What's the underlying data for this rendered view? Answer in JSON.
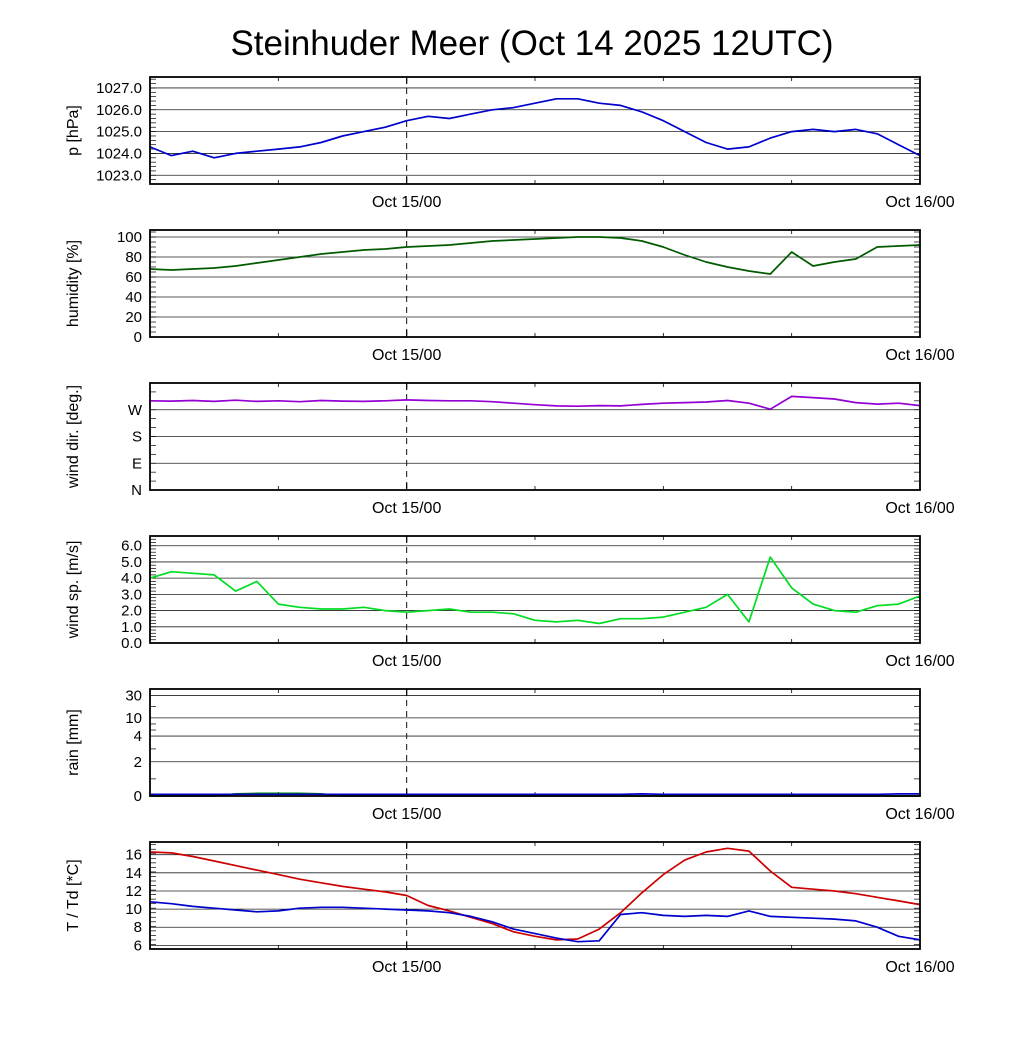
{
  "title": "Steinhuder Meer (Oct 14 2025 12UTC)",
  "x_axis_note": "time axis spans 36 hours from left edge to right edge; dashed vertical rule at first major tick",
  "chart_data": [
    {
      "type": "line",
      "ylabel": "p [hPa]",
      "ymin": 1022.6,
      "ymax": 1027.5,
      "minor_step": 0.2,
      "grid": true,
      "legend": "none",
      "yticks": [
        {
          "v": 1023,
          "label": "1023.0"
        },
        {
          "v": 1024,
          "label": "1024.0"
        },
        {
          "v": 1025,
          "label": "1025.0"
        },
        {
          "v": 1026,
          "label": "1026.0"
        },
        {
          "v": 1027,
          "label": "1027.0"
        }
      ],
      "x_start": 0,
      "x_end": 36,
      "x_minor_every": 6,
      "x_ticks": [
        {
          "t": 12,
          "label": "Oct 15/00",
          "dashed": true
        },
        {
          "t": 36,
          "label": "Oct 16/00",
          "dashed": false
        }
      ],
      "series": [
        {
          "name": "pressure_hpa",
          "color": "#0000cc",
          "values": [
            1024.3,
            1023.9,
            1024.1,
            1023.8,
            1024.0,
            1024.1,
            1024.2,
            1024.3,
            1024.5,
            1024.8,
            1025.0,
            1025.2,
            1025.5,
            1025.7,
            1025.6,
            1025.8,
            1026.0,
            1026.1,
            1026.3,
            1026.5,
            1026.5,
            1026.3,
            1026.2,
            1025.9,
            1025.5,
            1025.0,
            1024.5,
            1024.2,
            1024.3,
            1024.7,
            1025.0,
            1025.1,
            1025.0,
            1025.1,
            1024.9,
            1024.4,
            1023.9
          ]
        }
      ]
    },
    {
      "type": "line",
      "ylabel": "humidity [%]",
      "ymin": 0,
      "ymax": 107,
      "minor_step": 5,
      "grid": true,
      "legend": "none",
      "yticks": [
        {
          "v": 0,
          "label": "0"
        },
        {
          "v": 20,
          "label": "20"
        },
        {
          "v": 40,
          "label": "40"
        },
        {
          "v": 60,
          "label": "60"
        },
        {
          "v": 80,
          "label": "80"
        },
        {
          "v": 100,
          "label": "100"
        }
      ],
      "x_start": 0,
      "x_end": 36,
      "x_minor_every": 6,
      "x_ticks": [
        {
          "t": 12,
          "label": "Oct 15/00",
          "dashed": true
        },
        {
          "t": 36,
          "label": "Oct 16/00",
          "dashed": false
        }
      ],
      "series": [
        {
          "name": "humidity_pct",
          "color": "#005a00",
          "values": [
            68,
            67,
            68,
            69,
            71,
            74,
            77,
            80,
            83,
            85,
            87,
            88,
            90,
            91,
            92,
            94,
            96,
            97,
            98,
            99,
            100,
            100,
            99,
            96,
            90,
            82,
            75,
            70,
            66,
            63,
            85,
            71,
            75,
            78,
            90,
            91,
            92
          ]
        }
      ]
    },
    {
      "type": "line",
      "ylabel": "wind dir. [deg.]",
      "ymin": 0,
      "ymax": 360,
      "minor_step": 30,
      "grid": true,
      "legend": "none",
      "yticks": [
        {
          "v": 0,
          "label": "N"
        },
        {
          "v": 90,
          "label": "E"
        },
        {
          "v": 180,
          "label": "S"
        },
        {
          "v": 270,
          "label": "W"
        }
      ],
      "x_start": 0,
      "x_end": 36,
      "x_minor_every": 6,
      "x_ticks": [
        {
          "t": 12,
          "label": "Oct 15/00",
          "dashed": true
        },
        {
          "t": 36,
          "label": "Oct 16/00",
          "dashed": false
        }
      ],
      "series": [
        {
          "name": "wind_dir_deg",
          "color": "#9400d3",
          "values": [
            300,
            299,
            301,
            298,
            302,
            298,
            300,
            297,
            301,
            299,
            298,
            300,
            303,
            301,
            300,
            300,
            297,
            292,
            287,
            283,
            282,
            284,
            283,
            288,
            292,
            294,
            296,
            301,
            292,
            272,
            315,
            311,
            306,
            294,
            289,
            292,
            284
          ]
        }
      ]
    },
    {
      "type": "line",
      "ylabel": "wind sp. [m/s]",
      "ymin": 0,
      "ymax": 6.6,
      "minor_step": 0.2,
      "grid": true,
      "legend": "none",
      "yticks": [
        {
          "v": 0,
          "label": "0.0"
        },
        {
          "v": 1,
          "label": "1.0"
        },
        {
          "v": 2,
          "label": "2.0"
        },
        {
          "v": 3,
          "label": "3.0"
        },
        {
          "v": 4,
          "label": "4.0"
        },
        {
          "v": 5,
          "label": "5.0"
        },
        {
          "v": 6,
          "label": "6.0"
        }
      ],
      "x_start": 0,
      "x_end": 36,
      "x_minor_every": 6,
      "x_ticks": [
        {
          "t": 12,
          "label": "Oct 15/00",
          "dashed": true
        },
        {
          "t": 36,
          "label": "Oct 16/00",
          "dashed": false
        }
      ],
      "series": [
        {
          "name": "wind_speed_ms",
          "color": "#00dd22",
          "values": [
            4.0,
            4.4,
            4.3,
            4.2,
            3.2,
            3.8,
            2.4,
            2.2,
            2.1,
            2.1,
            2.2,
            2.0,
            1.9,
            2.0,
            2.1,
            1.9,
            1.9,
            1.8,
            1.4,
            1.3,
            1.4,
            1.2,
            1.5,
            1.5,
            1.6,
            1.9,
            2.2,
            3.0,
            1.3,
            5.3,
            3.4,
            2.4,
            2.0,
            1.9,
            2.3,
            2.4,
            2.9
          ]
        }
      ]
    },
    {
      "type": "line",
      "ylabel": "rain [mm]",
      "scale": "piecewise",
      "grid": true,
      "legend": "none",
      "yticks": [
        {
          "v": 0,
          "f": 0.0,
          "label": "0"
        },
        {
          "v": 2,
          "f": 0.32,
          "label": "2"
        },
        {
          "v": 4,
          "f": 0.56,
          "label": "4"
        },
        {
          "v": 10,
          "f": 0.73,
          "label": "10"
        },
        {
          "v": 30,
          "f": 0.94,
          "label": "30"
        }
      ],
      "minor_ticks": [
        1,
        3,
        6,
        8,
        20
      ],
      "x_start": 0,
      "x_end": 36,
      "x_minor_every": 6,
      "x_ticks": [
        {
          "t": 12,
          "label": "Oct 15/00",
          "dashed": true
        },
        {
          "t": 36,
          "label": "Oct 16/00",
          "dashed": false
        }
      ],
      "series": [
        {
          "name": "rain_mm_green",
          "color": "#008000",
          "values": [
            0,
            0,
            0,
            0,
            0.12,
            0.15,
            0.15,
            0.15,
            0.12,
            0,
            0,
            0,
            0,
            0,
            0,
            0,
            0,
            0,
            0,
            0,
            0,
            0,
            0,
            0,
            0,
            0,
            0,
            0,
            0,
            0,
            0,
            0,
            0,
            0,
            0,
            0,
            0
          ]
        },
        {
          "name": "rain_mm_blue",
          "color": "#0000cc",
          "values": [
            0.1,
            0.1,
            0.1,
            0.1,
            0.1,
            0.1,
            0.1,
            0.1,
            0.1,
            0.1,
            0.1,
            0.1,
            0.1,
            0.1,
            0.1,
            0.1,
            0.1,
            0.1,
            0.1,
            0.1,
            0.1,
            0.1,
            0.1,
            0.12,
            0.1,
            0.1,
            0.1,
            0.1,
            0.1,
            0.1,
            0.1,
            0.1,
            0.1,
            0.1,
            0.1,
            0.12,
            0.12
          ]
        }
      ]
    },
    {
      "type": "line",
      "ylabel": "T / Td [*C]",
      "ymin": 5.6,
      "ymax": 17.4,
      "minor_step": 0.5,
      "grid": true,
      "legend": "none",
      "yticks": [
        {
          "v": 6,
          "label": "6"
        },
        {
          "v": 8,
          "label": "8"
        },
        {
          "v": 10,
          "label": "10"
        },
        {
          "v": 12,
          "label": "12"
        },
        {
          "v": 14,
          "label": "14"
        },
        {
          "v": 16,
          "label": "16"
        }
      ],
      "x_start": 0,
      "x_end": 36,
      "x_minor_every": 6,
      "x_ticks": [
        {
          "t": 12,
          "label": "Oct 15/00",
          "dashed": true
        },
        {
          "t": 36,
          "label": "Oct 16/00",
          "dashed": false
        }
      ],
      "series": [
        {
          "name": "temperature_T_c",
          "color": "#cc0000",
          "values": [
            16.3,
            16.2,
            15.8,
            15.3,
            14.8,
            14.3,
            13.8,
            13.3,
            12.9,
            12.5,
            12.2,
            11.9,
            11.5,
            10.4,
            9.8,
            9.1,
            8.4,
            7.5,
            7.0,
            6.6,
            6.7,
            7.8,
            9.6,
            11.8,
            13.8,
            15.4,
            16.3,
            16.7,
            16.4,
            14.2,
            12.4,
            12.2,
            12.0,
            11.7,
            11.3,
            10.9,
            10.5
          ]
        },
        {
          "name": "dewpoint_Td_c",
          "color": "#0000cc",
          "values": [
            10.8,
            10.6,
            10.3,
            10.1,
            9.9,
            9.7,
            9.8,
            10.1,
            10.2,
            10.2,
            10.1,
            10.0,
            9.9,
            9.8,
            9.6,
            9.2,
            8.6,
            7.8,
            7.3,
            6.8,
            6.4,
            6.5,
            9.4,
            9.6,
            9.3,
            9.2,
            9.3,
            9.2,
            9.8,
            9.2,
            9.1,
            9.0,
            8.9,
            8.7,
            8.0,
            7.0,
            6.6
          ]
        }
      ]
    }
  ]
}
